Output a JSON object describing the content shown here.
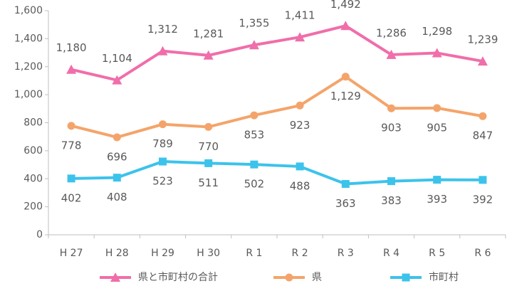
{
  "chart_data": {
    "type": "line",
    "categories": [
      "H 27",
      "H 28",
      "H 29",
      "H 30",
      "R 1",
      "R 2",
      "R 3",
      "R 4",
      "R 5",
      "R 6"
    ],
    "series": [
      {
        "name": "県と市町村の合計",
        "color": "#f06eaa",
        "marker": "triangle",
        "label_position": "above",
        "values": [
          1180,
          1104,
          1312,
          1281,
          1355,
          1411,
          1492,
          1286,
          1298,
          1239
        ],
        "value_labels": [
          "1,180",
          "1,104",
          "1,312",
          "1,281",
          "1,355",
          "1,411",
          "1,492",
          "1,286",
          "1,298",
          "1,239"
        ]
      },
      {
        "name": "県",
        "color": "#f4a46a",
        "marker": "circle",
        "label_position": "below",
        "values": [
          778,
          696,
          789,
          770,
          853,
          923,
          1129,
          903,
          905,
          847
        ],
        "value_labels": [
          "778",
          "696",
          "789",
          "770",
          "853",
          "923",
          "1,129",
          "903",
          "905",
          "847"
        ]
      },
      {
        "name": "市町村",
        "color": "#3cc3eb",
        "marker": "square",
        "label_position": "below",
        "values": [
          402,
          408,
          523,
          511,
          502,
          488,
          363,
          383,
          393,
          392
        ]
      }
    ],
    "ylim": [
      0,
      1600
    ],
    "yticks": [
      0,
      200,
      400,
      600,
      800,
      {
        "value": 1000,
        "label": "1,000"
      },
      {
        "value": 1200,
        "label": "1,200"
      },
      {
        "value": 1400,
        "label": "1,400"
      },
      {
        "value": 1600,
        "label": "1,600"
      }
    ],
    "grid": false,
    "legend": "bottom"
  }
}
